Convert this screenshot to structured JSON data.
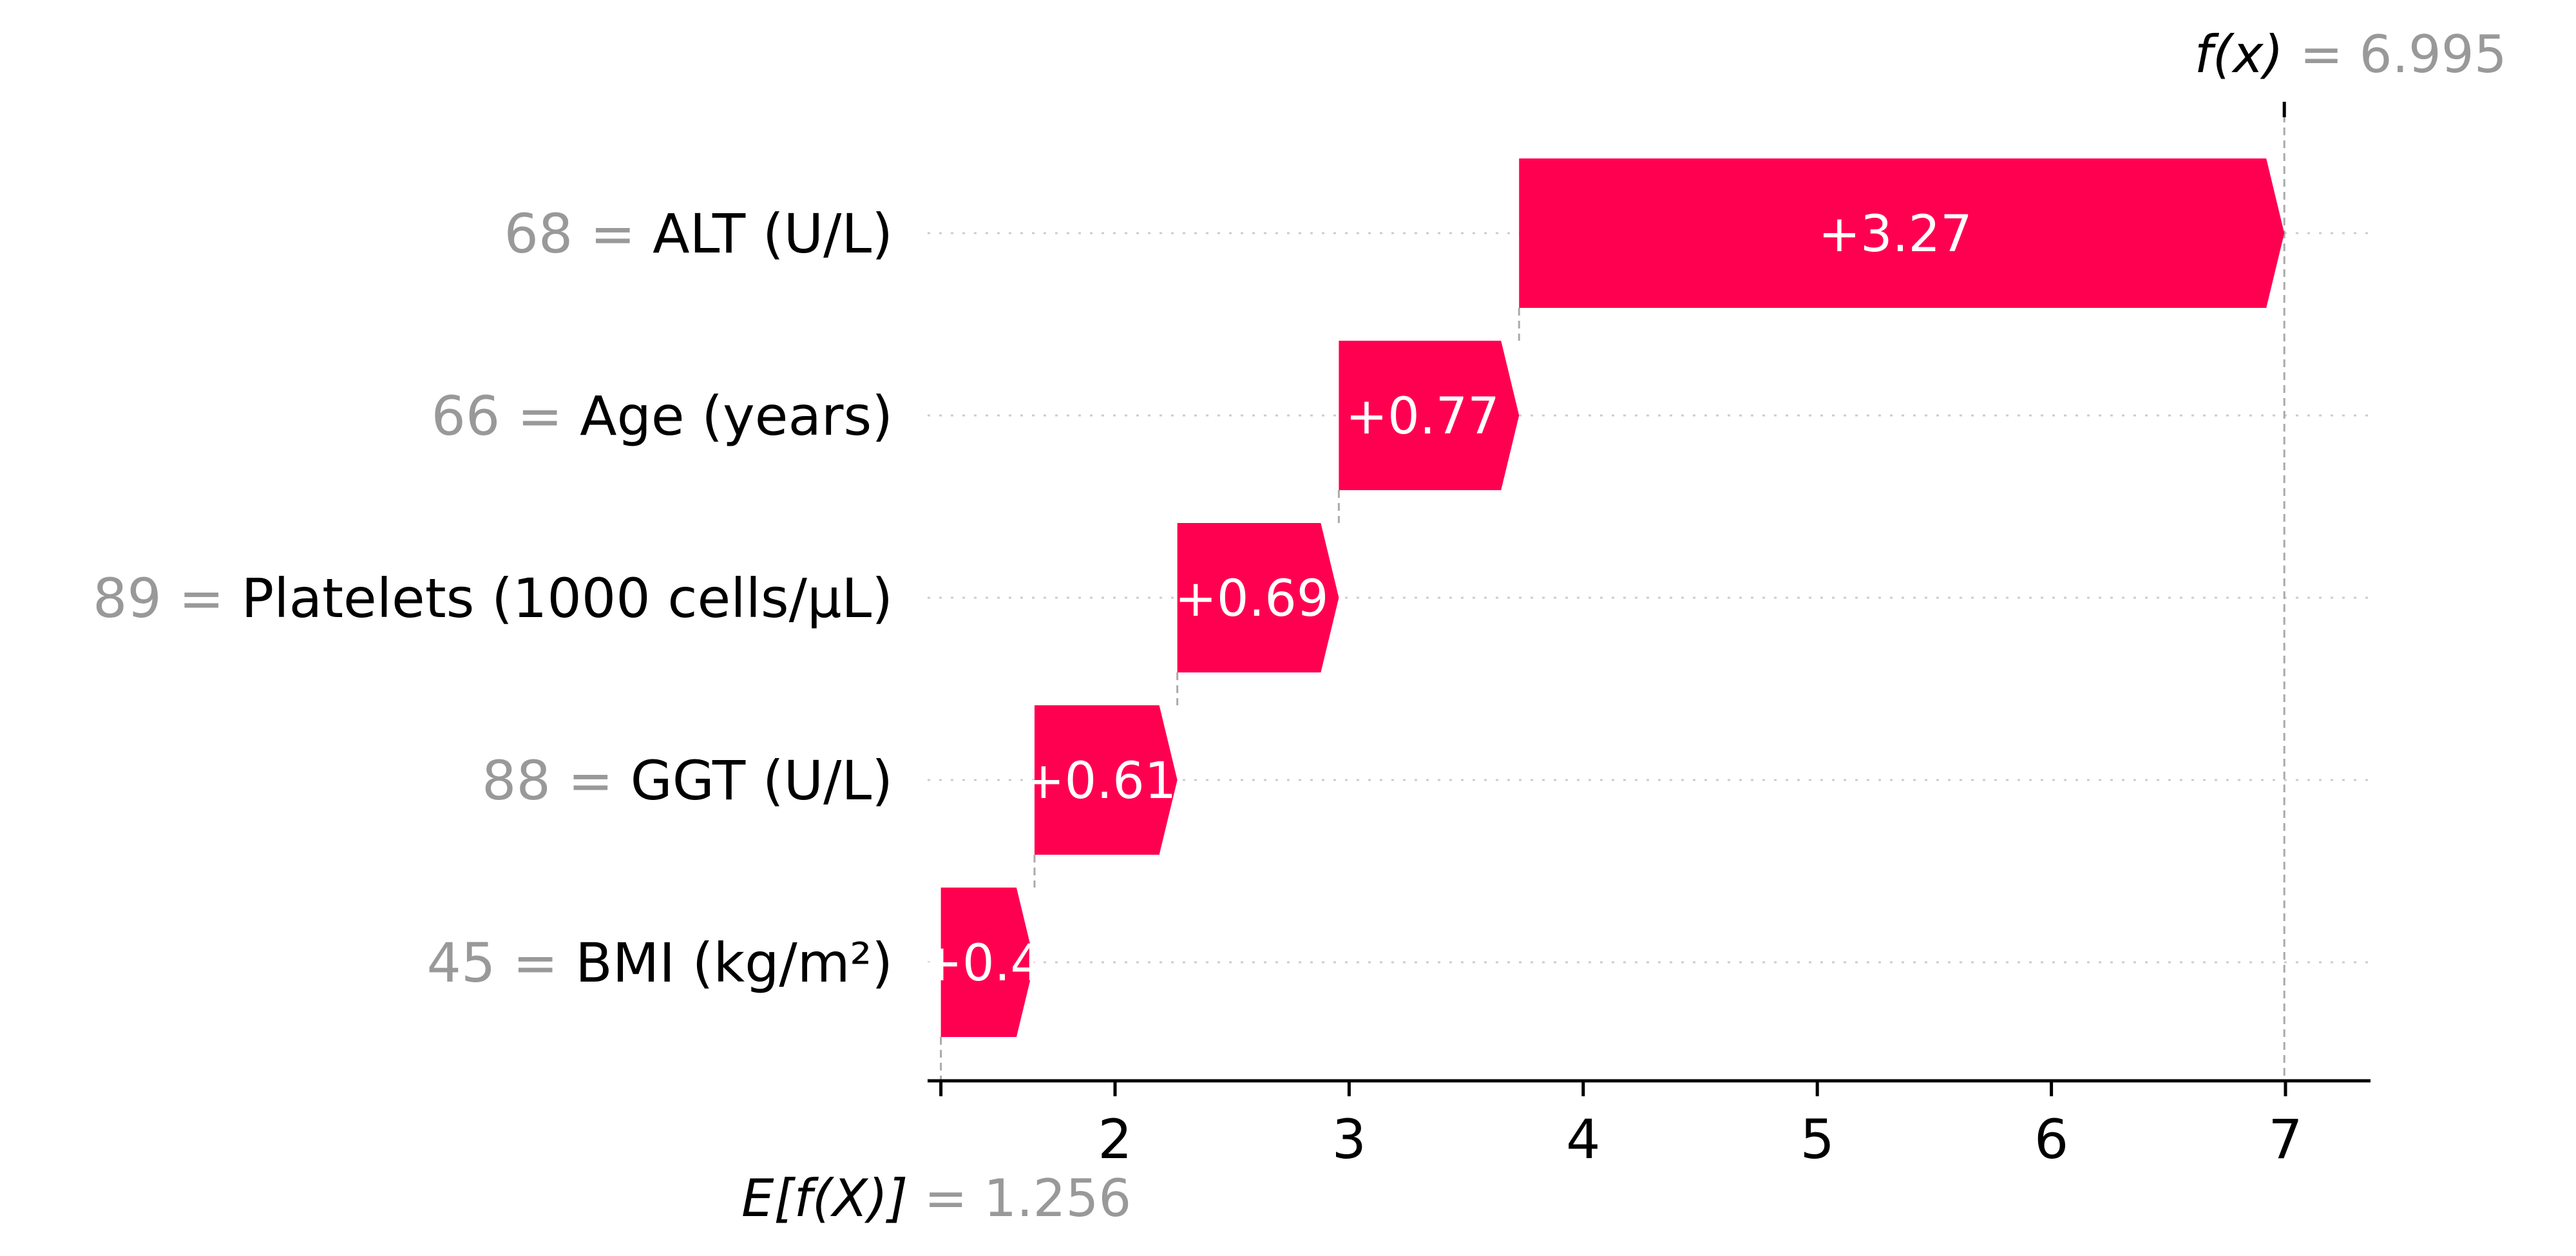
{
  "chart_data": {
    "type": "waterfall",
    "base_value": 1.256,
    "base_value_label": "1.256",
    "base_label": "E[f(X)]",
    "output_value": 6.995,
    "output_value_label": "6.995",
    "output_label": "f(x)",
    "xlim": [
      1.2,
      7.35
    ],
    "xticks": [
      2,
      3,
      4,
      5,
      6,
      7
    ],
    "features": [
      {
        "name": "ALT (U/L)",
        "value": "68",
        "contribution": 3.27,
        "contribution_label": "+3.27"
      },
      {
        "name": "Age (years)",
        "value": "66",
        "contribution": 0.77,
        "contribution_label": "+0.77"
      },
      {
        "name": "Platelets (1000 cells/µL)",
        "value": "89",
        "contribution": 0.69,
        "contribution_label": "+0.69"
      },
      {
        "name": "GGT (U/L)",
        "value": "88",
        "contribution": 0.61,
        "contribution_label": "+0.61"
      },
      {
        "name": "BMI (kg/m²)",
        "value": "45",
        "contribution": 0.4,
        "contribution_label": "+0.4"
      }
    ],
    "colors": {
      "positive": "#ff0051",
      "axis": "#000000",
      "muted": "#999999",
      "grid": "#cccccc"
    }
  }
}
